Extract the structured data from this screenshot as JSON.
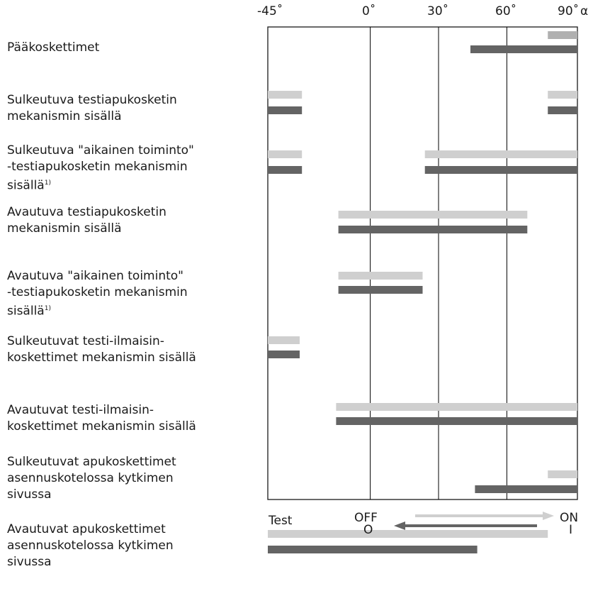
{
  "axis": {
    "ticks": [
      {
        "value": -45,
        "label": "-45˚"
      },
      {
        "value": 0,
        "label": "0˚"
      },
      {
        "value": 30,
        "label": "30˚"
      },
      {
        "value": 60,
        "label": "60˚"
      },
      {
        "value": 90,
        "label": "90˚"
      }
    ],
    "symbol": "α",
    "min": -45,
    "max": 91
  },
  "colors": {
    "light": "#cfcfcf",
    "dark": "#646464",
    "lightTop": "#b0b0b0",
    "line": "#000000",
    "frame": "#1a1a1a"
  },
  "rows": [
    {
      "label": "Pääkoskettimet",
      "sup": "",
      "bars": [
        {
          "tone": "lightTop",
          "from": 78,
          "to": 91
        },
        {
          "tone": "dark",
          "from": 44,
          "to": 91
        }
      ]
    },
    {
      "label": "Sulkeutuva testiapukosketin\nmekanismin sisällä",
      "sup": "",
      "bars": [
        {
          "tone": "light",
          "from": -45,
          "to": -30,
          "extra": {
            "from": 78,
            "to": 91
          }
        },
        {
          "tone": "dark",
          "from": -45,
          "to": -30,
          "extra": {
            "from": 78,
            "to": 91
          }
        }
      ]
    },
    {
      "label": "Sulkeutuva \"aikainen toiminto\"\n-testiapukosketin mekanismin\nsisällä",
      "sup": "1)",
      "bars": [
        {
          "tone": "light",
          "from": -45,
          "to": -30,
          "extra": {
            "from": 24,
            "to": 91
          }
        },
        {
          "tone": "dark",
          "from": -45,
          "to": -30,
          "extra": {
            "from": 24,
            "to": 91
          }
        }
      ]
    },
    {
      "label": "Avautuva testiapukosketin\nmekanismin sisällä",
      "sup": "",
      "bars": [
        {
          "tone": "light",
          "from": -14,
          "to": 69
        },
        {
          "tone": "dark",
          "from": -14,
          "to": 69
        }
      ]
    },
    {
      "label": "Avautuva \"aikainen toiminto\"\n-testiapukosketin mekanismin\nsisällä",
      "sup": "1)",
      "bars": [
        {
          "tone": "light",
          "from": -14,
          "to": 23
        },
        {
          "tone": "dark",
          "from": -14,
          "to": 23
        }
      ]
    },
    {
      "label": "Sulkeutuvat testi-ilmaisin-\nkoskettimet mekanismin sisällä",
      "sup": "",
      "bars": [
        {
          "tone": "light",
          "from": -45,
          "to": -31
        },
        {
          "tone": "dark",
          "from": -45,
          "to": -31
        }
      ]
    },
    {
      "label": "Avautuvat testi-ilmaisin-\nkoskettimet mekanismin sisällä",
      "sup": "",
      "bars": [
        {
          "tone": "light",
          "from": -15,
          "to": 91
        },
        {
          "tone": "dark",
          "from": -15,
          "to": 91
        }
      ]
    },
    {
      "label": "Sulkeutuvat apukoskettimet\nasennuskotelossa kytkimen\nsivussa",
      "sup": "",
      "bars": [
        {
          "tone": "light",
          "from": 78,
          "to": 91
        },
        {
          "tone": "dark",
          "from": 46,
          "to": 91
        }
      ]
    },
    {
      "label": "Avautuvat apukoskettimet\nasennuskotelossa kytkimen\nsivussa",
      "sup": "",
      "bars": [
        {
          "tone": "light",
          "from": -45,
          "to": 78
        },
        {
          "tone": "dark",
          "from": -45,
          "to": 47
        }
      ]
    }
  ],
  "bottom": {
    "test": "Test",
    "off": "OFF",
    "off_sub": "O",
    "on": "ON",
    "on_sub": "I"
  }
}
